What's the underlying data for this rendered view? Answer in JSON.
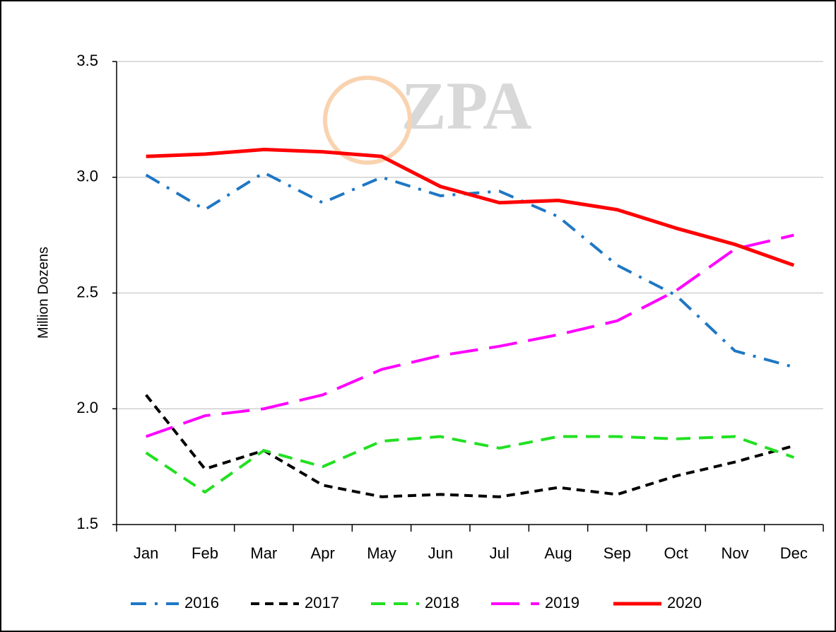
{
  "chart_data": {
    "type": "line",
    "y_label": "Million Dozens",
    "watermark": "ZPA",
    "categories": [
      "Jan",
      "Feb",
      "Mar",
      "Apr",
      "May",
      "Jun",
      "Jul",
      "Aug",
      "Sep",
      "Oct",
      "Nov",
      "Dec"
    ],
    "series": [
      {
        "name": "2016",
        "color": "#1f77c4",
        "dash": "dash-dot",
        "values": [
          3.01,
          2.86,
          3.02,
          2.89,
          3.0,
          2.92,
          2.94,
          2.83,
          2.62,
          2.49,
          2.25,
          2.18
        ]
      },
      {
        "name": "2017",
        "color": "#000000",
        "dash": "short-dash",
        "values": [
          2.06,
          1.74,
          1.82,
          1.67,
          1.62,
          1.63,
          1.62,
          1.66,
          1.63,
          1.71,
          1.77,
          1.84
        ]
      },
      {
        "name": "2018",
        "color": "#22e022",
        "dash": "dash",
        "values": [
          1.81,
          1.64,
          1.82,
          1.75,
          1.86,
          1.88,
          1.83,
          1.88,
          1.88,
          1.87,
          1.88,
          1.79
        ]
      },
      {
        "name": "2019",
        "color": "#ff00ff",
        "dash": "long-dash",
        "values": [
          1.88,
          1.97,
          2.0,
          2.06,
          2.17,
          2.23,
          2.27,
          2.32,
          2.38,
          2.51,
          2.69,
          2.75
        ]
      },
      {
        "name": "2020",
        "color": "#ff0000",
        "dash": "solid",
        "values": [
          3.09,
          3.1,
          3.12,
          3.11,
          3.09,
          2.96,
          2.89,
          2.9,
          2.86,
          2.78,
          2.71,
          2.62
        ]
      }
    ],
    "ylim": [
      1.5,
      3.5
    ],
    "yticks": [
      1.5,
      {
        "value": 2,
        "label": "2.0"
      },
      2.5,
      {
        "value": 3,
        "label": "3.0"
      },
      3.5
    ],
    "grid": true,
    "legend": "bottom"
  }
}
